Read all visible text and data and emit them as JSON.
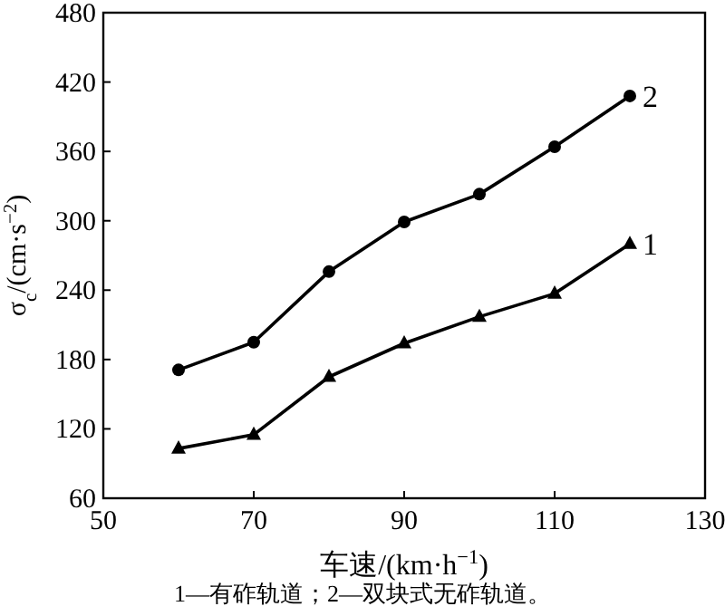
{
  "chart_data": {
    "type": "line",
    "xlabel": "车速/(km·h$^{−1}$)",
    "ylabel": "σ$_{c}$/(cm·s$^{−2}$)",
    "annotations": [
      "1—有砟轨道；2—双块式无砟轨道。"
    ],
    "x": [
      60,
      70,
      80,
      90,
      100,
      110,
      120
    ],
    "series": [
      {
        "name": "1",
        "color": "#000000",
        "marker": "triangle",
        "values": [
          103,
          115,
          165,
          194,
          217,
          237,
          280
        ]
      },
      {
        "name": "2",
        "color": "#000000",
        "marker": "circle",
        "values": [
          171,
          195,
          256,
          299,
          323,
          364,
          408
        ]
      }
    ],
    "xlim": [
      50,
      130
    ],
    "ylim": [
      60,
      480
    ],
    "xticks": [
      50,
      70,
      90,
      110,
      130
    ],
    "yticks": [
      60,
      120,
      180,
      240,
      300,
      360,
      420,
      480
    ],
    "grid": false
  }
}
